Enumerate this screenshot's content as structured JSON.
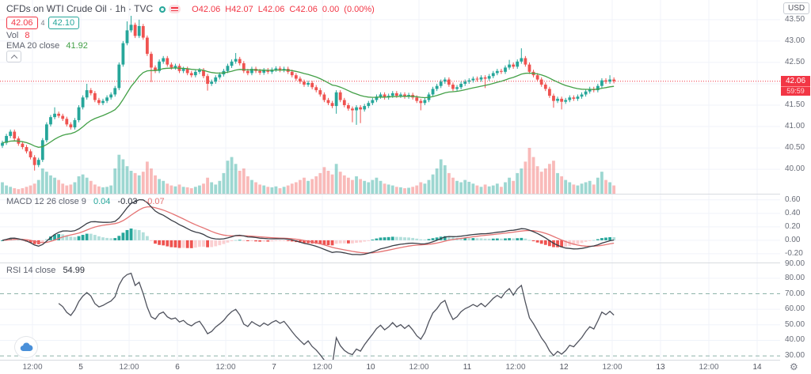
{
  "header": {
    "title": "CFDs on WTI Crude Oil · 1h · TVC",
    "ohlc": {
      "open": "O42.06",
      "high": "H42.07",
      "low": "L42.06",
      "close": "C42.06",
      "change": "0.00",
      "change_pct": "(0.00%)"
    },
    "bid": "42.06",
    "spread": "4",
    "ask": "42.10",
    "vol_label": "Vol",
    "vol_value": "8",
    "ema_label": "EMA 20 close",
    "ema_value": "41.92"
  },
  "panes": {
    "macd": {
      "label": "MACD 12 26 close 9",
      "hist_value": "0.04",
      "macd_value": "-0.03",
      "signal_value": "-0.07"
    },
    "rsi": {
      "label": "RSI 14 close",
      "value": "54.99"
    }
  },
  "axis": {
    "currency": "USD",
    "price_ticks": [
      "43.50",
      "43.00",
      "42.50",
      "41.50",
      "41.00",
      "40.50",
      "40.00"
    ],
    "last_price": "42.06",
    "countdown": "59:59",
    "macd_ticks": [
      "0.60",
      "0.40",
      "0.20",
      "0.00",
      "-0.20"
    ],
    "rsi_ticks": [
      "90.00",
      "80.00",
      "70.00",
      "60.00",
      "50.00",
      "40.00",
      "30.00"
    ],
    "time_ticks": [
      "12:00",
      "5",
      "12:00",
      "6",
      "12:00",
      "7",
      "12:00",
      "10",
      "12:00",
      "11",
      "12:00",
      "12",
      "12:00",
      "13",
      "12:00",
      "14"
    ]
  },
  "colors": {
    "up": "#26a69a",
    "down": "#ef5350",
    "vol_up": "rgba(38,166,154,0.45)",
    "vol_down": "rgba(239,83,80,0.4)",
    "ema": "#43a047",
    "macd_line": "#3a3e46",
    "signal_line": "#e57373",
    "hist_up": "#26a69a",
    "hist_up_light": "#b2dfdb",
    "hist_down": "#ef5350",
    "hist_down_light": "#fbcfd1",
    "rsi_line": "#50535e",
    "rsi_band": "#8db3aa",
    "grid": "#f0f3fa",
    "last_line": "#f23645"
  },
  "chart_data": [
    {
      "type": "candlestick",
      "title": "CFDs on WTI Crude Oil, 1h, TVC",
      "x_axis": "hourly bars, Aug 4 - Aug 12 (time ticks: 12:00 / day numbers 5,6,7,10,11,12,13,14)",
      "ylabel": "USD",
      "ylim": [
        39.41,
        43.96
      ],
      "open_first": 40.55,
      "wick_default": 0.05,
      "closes": [
        40.62,
        40.78,
        40.88,
        40.72,
        40.6,
        40.52,
        40.42,
        40.28,
        40.1,
        40.22,
        40.68,
        41.05,
        41.22,
        41.3,
        41.25,
        41.18,
        41.05,
        40.98,
        41.15,
        41.45,
        41.68,
        41.85,
        41.78,
        41.62,
        41.55,
        41.6,
        41.68,
        41.75,
        41.9,
        42.45,
        42.95,
        43.25,
        43.38,
        43.12,
        43.35,
        43.08,
        42.7,
        42.38,
        42.3,
        42.52,
        42.6,
        42.45,
        42.38,
        42.42,
        42.3,
        42.35,
        42.25,
        42.2,
        42.28,
        42.32,
        42.18,
        42.0,
        42.05,
        42.15,
        42.22,
        42.3,
        42.42,
        42.52,
        42.58,
        42.48,
        42.3,
        42.25,
        42.35,
        42.3,
        42.26,
        42.32,
        42.28,
        42.33,
        42.36,
        42.32,
        42.35,
        42.28,
        42.2,
        42.12,
        42.05,
        41.98,
        42.02,
        41.92,
        41.85,
        41.75,
        41.62,
        41.55,
        41.48,
        41.8,
        41.62,
        41.5,
        41.42,
        41.38,
        41.45,
        41.4,
        41.48,
        41.55,
        41.62,
        41.7,
        41.75,
        41.68,
        41.72,
        41.78,
        41.72,
        41.75,
        41.7,
        41.74,
        41.68,
        41.6,
        41.55,
        41.62,
        41.75,
        41.88,
        41.95,
        42.05,
        42.1,
        41.98,
        41.88,
        41.92,
        42.0,
        42.05,
        42.08,
        42.12,
        42.1,
        42.15,
        42.12,
        42.18,
        42.25,
        42.3,
        42.28,
        42.38,
        42.45,
        42.4,
        42.52,
        42.6,
        42.45,
        42.28,
        42.2,
        42.1,
        41.98,
        41.88,
        41.72,
        41.6,
        41.65,
        41.58,
        41.62,
        41.68,
        41.65,
        41.7,
        41.75,
        41.82,
        41.88,
        41.85,
        41.95,
        42.08,
        42.05,
        42.1,
        42.06
      ],
      "wick_overrides": {
        "8": {
          "low": 39.97
        },
        "13": {
          "high": 41.45
        },
        "21": {
          "high": 42.0
        },
        "31": {
          "high": 43.46
        },
        "32": {
          "high": 43.59
        },
        "34": {
          "high": 43.5
        },
        "37": {
          "low": 42.04
        },
        "51": {
          "low": 41.84
        },
        "58": {
          "high": 42.72
        },
        "83": {
          "low": 41.3
        },
        "87": {
          "low": 41.1
        },
        "88": {
          "low": 41.04
        },
        "89": {
          "low": 41.08
        },
        "104": {
          "low": 41.38
        },
        "120": {
          "low": 41.9
        },
        "126": {
          "high": 42.56
        },
        "129": {
          "high": 42.83
        },
        "137": {
          "low": 41.44
        },
        "139": {
          "low": 41.4
        },
        "151": {
          "high": 42.2
        }
      },
      "overlays": [
        {
          "name": "EMA 20",
          "period": 20,
          "last_value": 41.92
        }
      ],
      "last_close": 42.06
    },
    {
      "type": "bar",
      "name": "Volume",
      "note": "relative heights 0-100 read from pixels",
      "values": [
        25,
        18,
        15,
        12,
        10,
        12,
        15,
        18,
        22,
        30,
        55,
        48,
        40,
        35,
        30,
        22,
        18,
        20,
        25,
        38,
        42,
        35,
        28,
        20,
        16,
        14,
        15,
        18,
        55,
        85,
        75,
        60,
        50,
        45,
        40,
        48,
        70,
        55,
        40,
        32,
        28,
        22,
        18,
        16,
        20,
        15,
        14,
        12,
        15,
        18,
        22,
        35,
        25,
        20,
        28,
        45,
        72,
        80,
        65,
        50,
        55,
        38,
        30,
        25,
        20,
        18,
        15,
        14,
        16,
        12,
        15,
        18,
        22,
        25,
        30,
        35,
        28,
        32,
        38,
        45,
        58,
        50,
        42,
        65,
        48,
        40,
        35,
        30,
        38,
        32,
        28,
        25,
        30,
        35,
        28,
        22,
        20,
        18,
        15,
        14,
        12,
        13,
        15,
        18,
        25,
        22,
        30,
        42,
        55,
        75,
        62,
        45,
        35,
        28,
        25,
        30,
        26,
        22,
        18,
        15,
        20,
        16,
        18,
        22,
        15,
        25,
        35,
        28,
        45,
        55,
        70,
        100,
        80,
        60,
        48,
        55,
        65,
        72,
        45,
        38,
        30,
        25,
        20,
        18,
        22,
        25,
        28,
        20,
        35,
        48,
        30,
        25,
        18
      ]
    },
    {
      "type": "line",
      "name": "MACD 12 26 close 9",
      "ylim": [
        -0.33,
        0.68
      ],
      "computed_from": "candlestick closes (EMA12-EMA26, signal EMA9, histogram)",
      "last_values": {
        "histogram": 0.04,
        "macd": -0.03,
        "signal": -0.07
      }
    },
    {
      "type": "line",
      "name": "RSI 14 close",
      "ylim": [
        27.5,
        89.6
      ],
      "overbought": 70,
      "oversold": 30,
      "computed_from": "candlestick closes (Wilder RSI 14)",
      "last_value": 54.99
    }
  ]
}
